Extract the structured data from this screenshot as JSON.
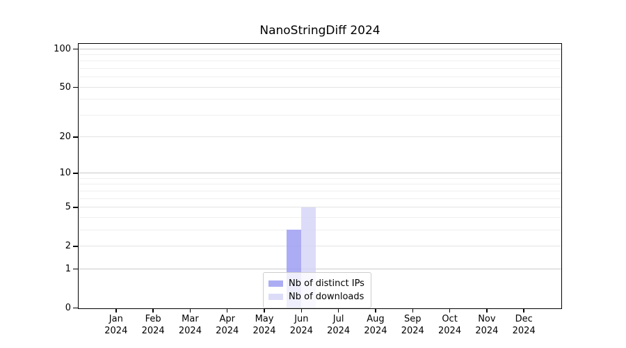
{
  "title": "NanoStringDiff 2024",
  "chart_data": {
    "type": "bar",
    "title": "NanoStringDiff 2024",
    "x_categories": [
      {
        "month": "Jan",
        "year": "2024"
      },
      {
        "month": "Feb",
        "year": "2024"
      },
      {
        "month": "Mar",
        "year": "2024"
      },
      {
        "month": "Apr",
        "year": "2024"
      },
      {
        "month": "May",
        "year": "2024"
      },
      {
        "month": "Jun",
        "year": "2024"
      },
      {
        "month": "Jul",
        "year": "2024"
      },
      {
        "month": "Aug",
        "year": "2024"
      },
      {
        "month": "Sep",
        "year": "2024"
      },
      {
        "month": "Oct",
        "year": "2024"
      },
      {
        "month": "Nov",
        "year": "2024"
      },
      {
        "month": "Dec",
        "year": "2024"
      }
    ],
    "series": [
      {
        "name": "Nb of distinct IPs",
        "color": "#9e9ef2",
        "alpha": 0.85,
        "values": [
          0,
          0,
          0,
          0,
          0,
          3,
          0,
          0,
          0,
          0,
          0,
          0
        ]
      },
      {
        "name": "Nb of downloads",
        "color": "#d3d3f7",
        "alpha": 0.8,
        "values": [
          0,
          0,
          0,
          0,
          0,
          5,
          0,
          0,
          0,
          0,
          0,
          0
        ]
      }
    ],
    "y_scale": "log1p",
    "y_ticks": [
      0,
      1,
      2,
      5,
      10,
      20,
      50,
      100
    ],
    "ylim": [
      0,
      100
    ],
    "grid_lines": {
      "major": [
        1,
        10,
        100
      ],
      "mid": [
        2,
        5,
        20,
        50
      ],
      "minor": [
        3,
        4,
        6,
        7,
        8,
        9,
        30,
        40,
        60,
        70,
        80,
        90
      ]
    },
    "grid_colors": {
      "major": "#c9c9c9",
      "mid": "#e3e3e3",
      "minor": "#efefef"
    },
    "legend_position": "bottom-center",
    "axis_color": "#000000"
  }
}
